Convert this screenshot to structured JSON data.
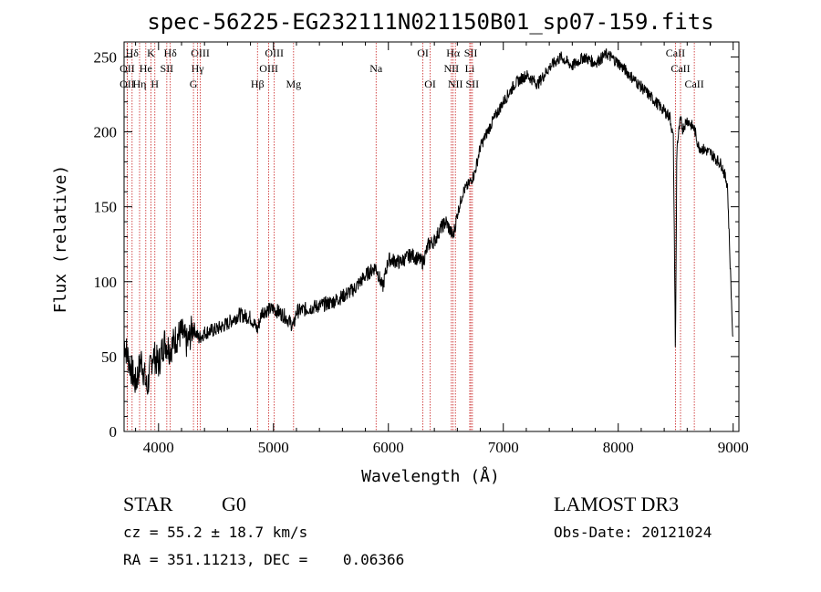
{
  "chart_data": {
    "type": "line",
    "title": "spec-56225-EG232111N021150B01_sp07-159.fits",
    "xlabel": "Wavelength (Å)",
    "ylabel": "Flux (relative)",
    "xlim": [
      3700,
      9050
    ],
    "ylim": [
      0,
      260
    ],
    "xticks": [
      4000,
      5000,
      6000,
      7000,
      8000,
      9000
    ],
    "yticks": [
      0,
      50,
      100,
      150,
      200,
      250
    ],
    "series": [
      {
        "name": "flux",
        "x": [
          3700,
          3750,
          3800,
          3850,
          3900,
          3950,
          4000,
          4050,
          4100,
          4150,
          4200,
          4250,
          4300,
          4350,
          4400,
          4500,
          4600,
          4700,
          4800,
          4861,
          4900,
          5000,
          5100,
          5175,
          5200,
          5300,
          5400,
          5500,
          5600,
          5700,
          5800,
          5890,
          5950,
          6000,
          6100,
          6200,
          6300,
          6350,
          6400,
          6450,
          6500,
          6563,
          6600,
          6650,
          6700,
          6750,
          6800,
          6900,
          7000,
          7100,
          7200,
          7300,
          7400,
          7500,
          7600,
          7700,
          7800,
          7900,
          8000,
          8100,
          8200,
          8300,
          8400,
          8450,
          8480,
          8498,
          8510,
          8542,
          8560,
          8600,
          8662,
          8700,
          8800,
          8900,
          8950,
          9000
        ],
        "y": [
          60,
          45,
          32,
          48,
          28,
          52,
          45,
          60,
          55,
          62,
          66,
          58,
          70,
          62,
          66,
          68,
          72,
          78,
          76,
          68,
          80,
          82,
          77,
          70,
          80,
          82,
          84,
          86,
          90,
          95,
          104,
          110,
          96,
          115,
          113,
          118,
          113,
          125,
          127,
          135,
          140,
          130,
          145,
          160,
          165,
          172,
          190,
          206,
          220,
          232,
          238,
          232,
          243,
          250,
          244,
          250,
          246,
          252,
          246,
          238,
          230,
          222,
          214,
          210,
          195,
          50,
          190,
          208,
          202,
          208,
          202,
          190,
          186,
          178,
          165,
          55
        ]
      }
    ],
    "emission_lines": [
      {
        "label": "Hδ",
        "x": 3770,
        "row": 0
      },
      {
        "label": "K",
        "x": 3934,
        "row": 0
      },
      {
        "label": "Hδ",
        "x": 4102,
        "row": 0
      },
      {
        "label": "OIII",
        "x": 4363,
        "row": 0
      },
      {
        "label": "OIII",
        "x": 5007,
        "row": 0
      },
      {
        "label": "OI",
        "x": 6300,
        "row": 0
      },
      {
        "label": "Hα",
        "x": 6563,
        "row": 0
      },
      {
        "label": "SII",
        "x": 6717,
        "row": 0
      },
      {
        "label": "CaII",
        "x": 8498,
        "row": 0
      },
      {
        "label": "OII",
        "x": 3727,
        "row": 1
      },
      {
        "label": "He",
        "x": 3889,
        "row": 1
      },
      {
        "label": "SII",
        "x": 4072,
        "row": 1
      },
      {
        "label": "Hγ",
        "x": 4340,
        "row": 1
      },
      {
        "label": "OIII",
        "x": 4959,
        "row": 1
      },
      {
        "label": "Na",
        "x": 5893,
        "row": 1
      },
      {
        "label": "NII",
        "x": 6548,
        "row": 1
      },
      {
        "label": "Li",
        "x": 6708,
        "row": 1
      },
      {
        "label": "CaII",
        "x": 8542,
        "row": 1
      },
      {
        "label": "OII",
        "x": 3727,
        "row": 2
      },
      {
        "label": "Hη",
        "x": 3835,
        "row": 2
      },
      {
        "label": "H",
        "x": 3968,
        "row": 2
      },
      {
        "label": "G",
        "x": 4304,
        "row": 2
      },
      {
        "label": "Hβ",
        "x": 4861,
        "row": 2
      },
      {
        "label": "Mg",
        "x": 5175,
        "row": 2
      },
      {
        "label": "OI",
        "x": 6364,
        "row": 2
      },
      {
        "label": "NII",
        "x": 6583,
        "row": 2
      },
      {
        "label": "SII",
        "x": 6731,
        "row": 2
      },
      {
        "label": "CaII",
        "x": 8662,
        "row": 2
      }
    ]
  },
  "info": {
    "object_class": "STAR",
    "subclass": "G0",
    "survey": "LAMOST DR3",
    "cz": "cz = 55.2 ± 18.7 km/s",
    "obs_date": "Obs-Date: 20121024",
    "coords": "RA = 351.11213, DEC =    0.06366"
  }
}
